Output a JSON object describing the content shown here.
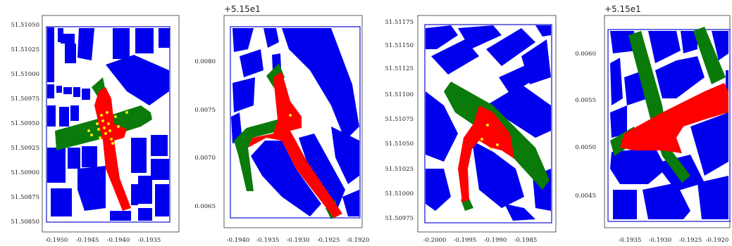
{
  "colors": {
    "buildings": "#0000ee",
    "green_zone": "#0a7a0a",
    "red_zone": "#ff0000",
    "points": "#ffee00"
  },
  "chart_data": [
    {
      "type": "map",
      "offset_text": "",
      "x_ticks": [
        "-0.1950",
        "-0.1945",
        "-0.1940",
        "-0.1935"
      ],
      "y_ticks": [
        "51.51050",
        "51.51025",
        "51.51000",
        "51.50975",
        "51.50950",
        "51.50925",
        "51.50900",
        "51.50875",
        "51.50850"
      ],
      "xlim": [
        -0.1952,
        -0.193
      ],
      "ylim": [
        51.5084,
        51.5106
      ]
    },
    {
      "type": "map",
      "offset_text": "+5.15e1",
      "x_ticks": [
        "-0.1940",
        "-0.1935",
        "-0.1930",
        "-0.1925",
        "-0.1920"
      ],
      "y_ticks": [
        "0.0080",
        "0.0075",
        "0.0070",
        "0.0065"
      ],
      "xlim": [
        -0.1942,
        -0.1918
      ],
      "ylim": [
        0.0062,
        0.0084
      ]
    },
    {
      "type": "map",
      "offset_text": "",
      "x_ticks": [
        "-0.2000",
        "-0.1995",
        "-0.1990",
        "-0.1985"
      ],
      "y_ticks": [
        "51.51175",
        "51.51150",
        "51.51125",
        "51.51100",
        "51.51075",
        "51.51050",
        "51.51025",
        "51.51000",
        "51.50975"
      ],
      "xlim": [
        -0.2002,
        -0.198
      ],
      "ylim": [
        51.5096,
        51.5118
      ]
    },
    {
      "type": "map",
      "offset_text": "+5.15e1",
      "x_ticks": [
        "-0.1935",
        "-0.1930",
        "-0.1925",
        "-0.1920"
      ],
      "y_ticks": [
        "0.0060",
        "0.0055",
        "0.0050",
        "0.0045"
      ],
      "xlim": [
        -0.194,
        -0.1919
      ],
      "ylim": [
        0.004,
        0.0063
      ]
    }
  ]
}
